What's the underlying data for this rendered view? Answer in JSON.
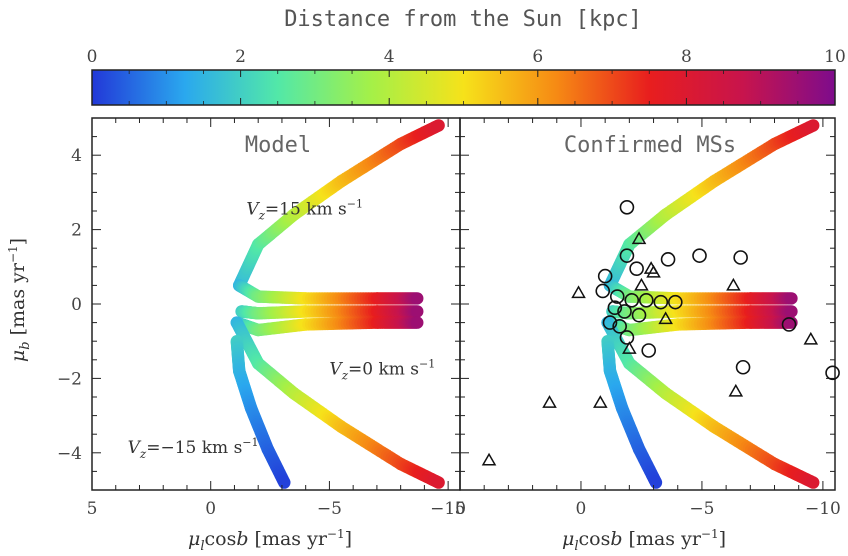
{
  "colorbar": {
    "title": "Distance from the Sun [kpc]",
    "ticks": [
      0,
      2,
      4,
      6,
      8,
      10
    ],
    "tick_labels": [
      "0",
      "2",
      "4",
      "6",
      "8",
      "10"
    ],
    "colors": [
      "#2238d8",
      "#2aa8ee",
      "#52e8a8",
      "#a4f048",
      "#f6e21a",
      "#f68a14",
      "#e81e1e",
      "#c8144c",
      "#7e0c8c"
    ]
  },
  "axes": {
    "ylabel": "μ_b [mas yr⁻¹]",
    "xlabel": "μ_l cos b [mas yr⁻¹]",
    "y_ticks": [
      "4",
      "2",
      "0",
      "−2",
      "−4"
    ],
    "x_ticks": [
      "5",
      "0",
      "−5",
      "−10"
    ]
  },
  "chart_data": [
    {
      "type": "scatter",
      "title": "Model",
      "xlim": [
        5,
        -10.5
      ],
      "ylim": [
        -5,
        5
      ],
      "color_scale": "distance_kpc",
      "annotations": [
        {
          "text": "V_z = 15 km s⁻¹",
          "x": -1.5,
          "y": 2.4
        },
        {
          "text": "V_z = 0 km s⁻¹",
          "x": -5.0,
          "y": -1.9
        },
        {
          "text": "V_z = −15 km s⁻¹",
          "x": 3.5,
          "y": -4.0
        }
      ],
      "series": [
        {
          "points": [
            {
              "x": -1.2,
              "y": 0.5,
              "d": 1.5
            },
            {
              "x": -2.0,
              "y": 1.6,
              "d": 2.5
            },
            {
              "x": -3.5,
              "y": 2.4,
              "d": 4.0
            },
            {
              "x": -5.5,
              "y": 3.3,
              "d": 5.5
            },
            {
              "x": -8.0,
              "y": 4.3,
              "d": 7.0
            },
            {
              "x": -9.6,
              "y": 4.8,
              "d": 8.0
            }
          ]
        },
        {
          "points": [
            {
              "x": -1.2,
              "y": 0.5,
              "d": 1.5
            },
            {
              "x": -2.0,
              "y": 0.2,
              "d": 3.0
            },
            {
              "x": -4.0,
              "y": 0.15,
              "d": 5.0
            },
            {
              "x": -7.0,
              "y": 0.15,
              "d": 7.5
            },
            {
              "x": -8.7,
              "y": 0.15,
              "d": 9.5
            }
          ]
        },
        {
          "points": [
            {
              "x": -1.3,
              "y": -0.2,
              "d": 2.0
            },
            {
              "x": -2.0,
              "y": -0.25,
              "d": 3.0
            },
            {
              "x": -4.0,
              "y": -0.2,
              "d": 5.0
            },
            {
              "x": -7.0,
              "y": -0.2,
              "d": 7.5
            },
            {
              "x": -8.7,
              "y": -0.2,
              "d": 9.5
            }
          ]
        },
        {
          "points": [
            {
              "x": -1.1,
              "y": -0.5,
              "d": 1.5
            },
            {
              "x": -2.0,
              "y": -0.7,
              "d": 3.0
            },
            {
              "x": -4.0,
              "y": -0.55,
              "d": 5.0
            },
            {
              "x": -7.0,
              "y": -0.5,
              "d": 7.5
            },
            {
              "x": -8.7,
              "y": -0.5,
              "d": 9.5
            }
          ]
        },
        {
          "points": [
            {
              "x": -1.1,
              "y": -0.5,
              "d": 1.5
            },
            {
              "x": -2.0,
              "y": -1.6,
              "d": 2.5
            },
            {
              "x": -3.5,
              "y": -2.4,
              "d": 4.0
            },
            {
              "x": -5.5,
              "y": -3.3,
              "d": 5.5
            },
            {
              "x": -8.0,
              "y": -4.3,
              "d": 7.0
            },
            {
              "x": -9.6,
              "y": -4.8,
              "d": 8.0
            }
          ]
        },
        {
          "points": [
            {
              "x": -1.1,
              "y": -1.0,
              "d": 2.0
            },
            {
              "x": -1.2,
              "y": -1.8,
              "d": 1.5
            },
            {
              "x": -1.7,
              "y": -2.8,
              "d": 1.0
            },
            {
              "x": -2.4,
              "y": -3.9,
              "d": 0.5
            },
            {
              "x": -3.1,
              "y": -4.8,
              "d": 0.1
            }
          ]
        }
      ]
    },
    {
      "type": "scatter",
      "title": "Confirmed MSs",
      "xlim": [
        5,
        -10.5
      ],
      "ylim": [
        -5,
        5
      ],
      "circles": [
        {
          "x": -1.9,
          "y": 2.6
        },
        {
          "x": -1.9,
          "y": 1.3
        },
        {
          "x": -2.3,
          "y": 0.95
        },
        {
          "x": -4.9,
          "y": 1.3
        },
        {
          "x": -6.6,
          "y": 1.25
        },
        {
          "x": -1.0,
          "y": 0.75
        },
        {
          "x": -0.9,
          "y": 0.35
        },
        {
          "x": -1.5,
          "y": 0.2
        },
        {
          "x": -2.1,
          "y": 0.1
        },
        {
          "x": -2.7,
          "y": 0.1
        },
        {
          "x": -3.3,
          "y": 0.05
        },
        {
          "x": -3.9,
          "y": 0.05
        },
        {
          "x": -1.4,
          "y": -0.1
        },
        {
          "x": -1.8,
          "y": -0.2
        },
        {
          "x": -2.4,
          "y": -0.3
        },
        {
          "x": -1.2,
          "y": -0.5
        },
        {
          "x": -1.6,
          "y": -0.6
        },
        {
          "x": -1.9,
          "y": -0.9
        },
        {
          "x": -2.8,
          "y": -1.25
        },
        {
          "x": -6.7,
          "y": -1.7
        },
        {
          "x": -8.6,
          "y": -0.55
        },
        {
          "x": -10.4,
          "y": -1.85
        },
        {
          "x": -3.6,
          "y": 1.2
        }
      ],
      "triangles": [
        {
          "x": -2.4,
          "y": 1.75
        },
        {
          "x": -2.9,
          "y": 0.95
        },
        {
          "x": -3.0,
          "y": 0.85
        },
        {
          "x": 0.1,
          "y": 0.3
        },
        {
          "x": -6.3,
          "y": 0.5
        },
        {
          "x": -2.5,
          "y": 0.5
        },
        {
          "x": -3.5,
          "y": -0.4
        },
        {
          "x": -2.0,
          "y": -1.2
        },
        {
          "x": -9.5,
          "y": -0.95
        },
        {
          "x": -6.4,
          "y": -2.35
        },
        {
          "x": 1.3,
          "y": -2.65
        },
        {
          "x": -0.8,
          "y": -2.65
        },
        {
          "x": 3.8,
          "y": -4.2
        }
      ]
    }
  ]
}
